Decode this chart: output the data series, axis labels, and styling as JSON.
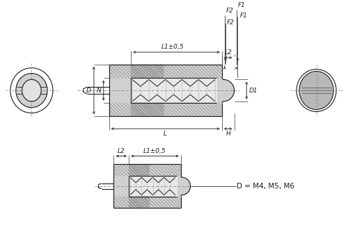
{
  "bg_color": "#ffffff",
  "lc": "#1a1a1a",
  "gray_light": "#d0d0d0",
  "gray_mid": "#b8b8b8",
  "gray_dark": "#909090",
  "hatch_col": "#808080",
  "dim_col": "#333333",
  "fs": 6.5,
  "lw": 0.8,
  "label_F1": "F1",
  "label_F2": "F2",
  "label_L1": "L1±0,5",
  "label_L2": "L2",
  "label_L": "L",
  "label_H": "H",
  "label_D": "D",
  "label_N": "N",
  "label_D1": "D1",
  "label_note": "D = M4, M5, M6",
  "label_bL2": "L2",
  "label_bL1": "L1±0,5"
}
